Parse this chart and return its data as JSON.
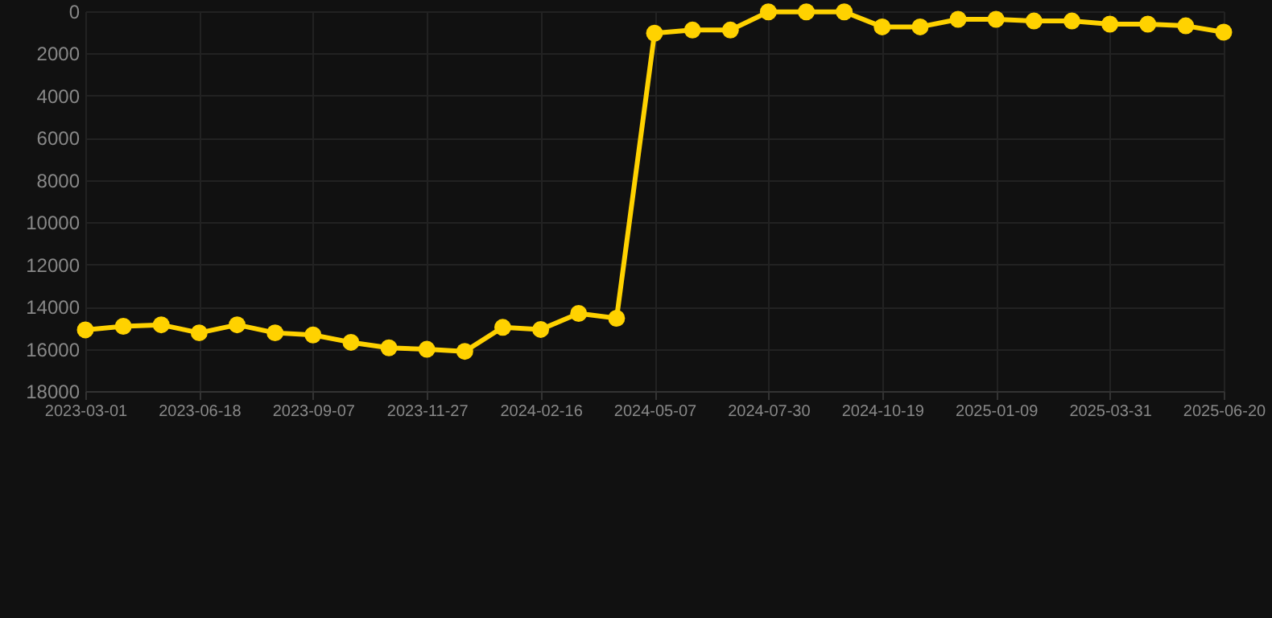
{
  "chart_data": {
    "type": "line",
    "categories": [
      "2023-03-01",
      null,
      null,
      "2023-06-18",
      null,
      null,
      "2023-09-07",
      null,
      null,
      "2023-11-27",
      null,
      null,
      "2024-02-16",
      null,
      null,
      "2024-05-07",
      null,
      null,
      "2024-07-30",
      null,
      null,
      "2024-10-19",
      null,
      null,
      "2025-01-09",
      null,
      null,
      "2025-03-31",
      null,
      null,
      "2025-06-20"
    ],
    "series": [
      {
        "color": "#ffd200",
        "values": [
          15100,
          14930,
          14860,
          15240,
          14860,
          15240,
          15340,
          15690,
          15950,
          16020,
          16120,
          14980,
          15080,
          14320,
          14550,
          1040,
          890,
          890,
          30,
          30,
          30,
          740,
          740,
          380,
          380,
          460,
          460,
          610,
          610,
          690,
          990
        ]
      }
    ],
    "ylim": [
      18000,
      0
    ],
    "yticks": [
      0,
      2000,
      4000,
      6000,
      8000,
      10000,
      12000,
      14000,
      16000,
      18000
    ],
    "grid": true,
    "marker": "circle",
    "line_style": "solid"
  }
}
